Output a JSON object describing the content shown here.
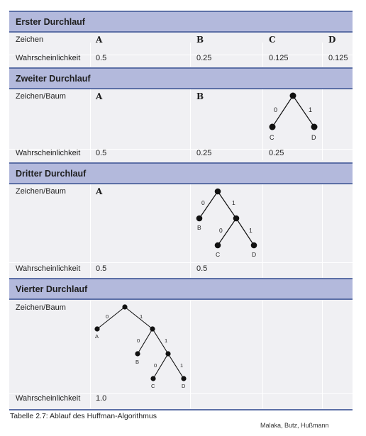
{
  "table": {
    "runs": [
      {
        "title": "Erster Durchlauf",
        "row1_label": "Zeichen",
        "symbols": [
          "A",
          "B",
          "C",
          "D"
        ],
        "prob_label": "Wahrscheinlichkeit",
        "probs": [
          "0.5",
          "0.25",
          "0.125",
          "0.125"
        ]
      },
      {
        "title": "Zweiter Durchlauf",
        "row1_label": "Zeichen/Baum",
        "symbols": [
          "A",
          "B"
        ],
        "tree": {
          "edges": [
            "0",
            "1"
          ],
          "leaves": [
            "C",
            "D"
          ]
        },
        "prob_label": "Wahrscheinlichkeit",
        "probs": [
          "0.5",
          "0.25",
          "0.25"
        ]
      },
      {
        "title": "Dritter Durchlauf",
        "row1_label": "Zeichen/Baum",
        "symbols": [
          "A"
        ],
        "tree": {
          "edges": [
            "0",
            "1",
            "0",
            "1"
          ],
          "leaves": [
            "B",
            "C",
            "D"
          ]
        },
        "prob_label": "Wahrscheinlichkeit",
        "probs": [
          "0.5",
          "0.5"
        ]
      },
      {
        "title": "Vierter Durchlauf",
        "row1_label": "Zeichen/Baum",
        "tree": {
          "edges": [
            "0",
            "1",
            "0",
            "1",
            "0",
            "1"
          ],
          "leaves": [
            "A",
            "B",
            "C",
            "D"
          ]
        },
        "prob_label": "Wahrscheinlichkeit",
        "probs": [
          "1.0"
        ]
      }
    ]
  },
  "caption": "Tabelle 2.7: Ablauf des Huffman-Algorithmus",
  "credit": "Malaka, Butz, Hußmann",
  "colors": {
    "header_bg": "#b3b9dc",
    "rule": "#5c6fa6",
    "body_bg": "#f0f0f3"
  }
}
